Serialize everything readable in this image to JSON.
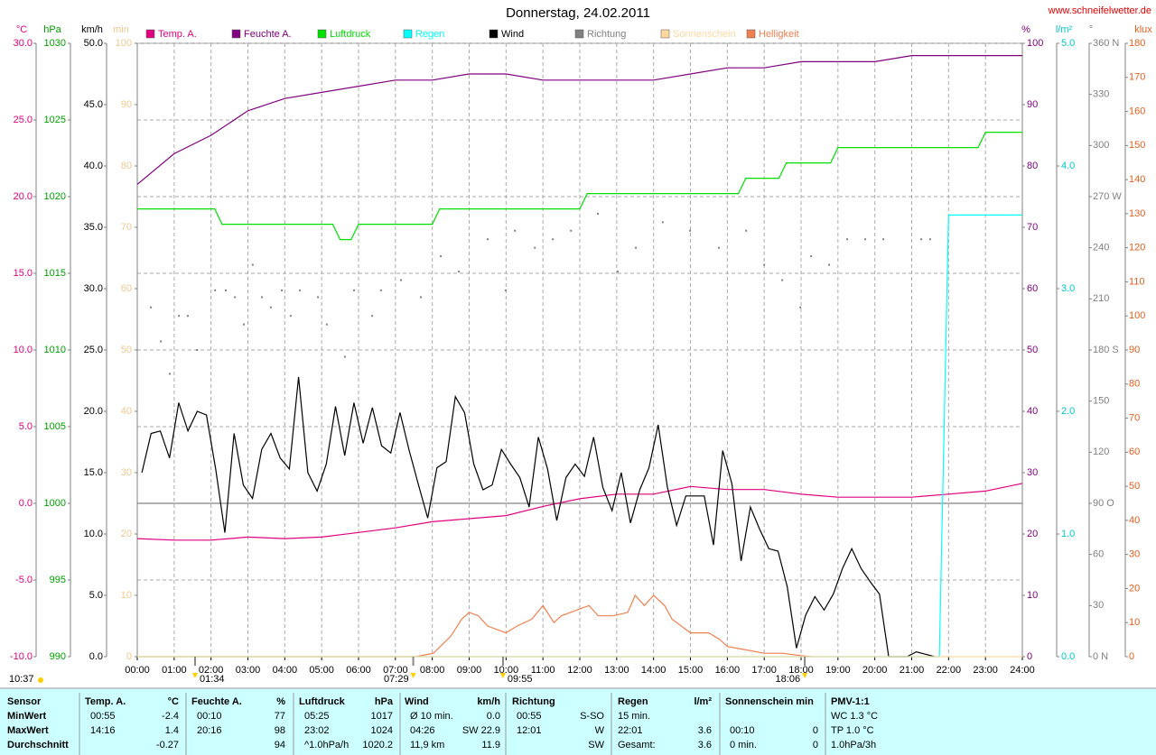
{
  "chart_data": {
    "type": "line",
    "title": "Donnerstag, 24.02.2011",
    "source": "www.schneifelwetter.de",
    "xlim": [
      0,
      24
    ],
    "xticks": [
      {
        "value": 0,
        "label": "00:00"
      },
      {
        "value": 1,
        "label": "01:00"
      },
      {
        "value": 2,
        "label": "02:00"
      },
      {
        "value": 3,
        "label": "03:00"
      },
      {
        "value": 4,
        "label": "04:00"
      },
      {
        "value": 5,
        "label": "05:00"
      },
      {
        "value": 6,
        "label": "06:00"
      },
      {
        "value": 7,
        "label": "07:00"
      },
      {
        "value": 8,
        "label": "08:00"
      },
      {
        "value": 9,
        "label": "09:00"
      },
      {
        "value": 10,
        "label": "10:00"
      },
      {
        "value": 11,
        "label": "11:00"
      },
      {
        "value": 12,
        "label": "12:00"
      },
      {
        "value": 13,
        "label": "13:00"
      },
      {
        "value": 14,
        "label": "14:00"
      },
      {
        "value": 15,
        "label": "15:00"
      },
      {
        "value": 16,
        "label": "16:00"
      },
      {
        "value": 17,
        "label": "17:00"
      },
      {
        "value": 18,
        "label": "18:00"
      },
      {
        "value": 19,
        "label": "19:00"
      },
      {
        "value": 20,
        "label": "20:00"
      },
      {
        "value": 21,
        "label": "21:00"
      },
      {
        "value": 22,
        "label": "22:00"
      },
      {
        "value": 23,
        "label": "23:00"
      },
      {
        "value": 24,
        "label": "24:00"
      }
    ],
    "grid": true,
    "ylabel": "°C",
    "ycolor": "#e0007f",
    "ylim": [
      -10,
      30
    ],
    "yticks": [
      {
        "value": -10,
        "label": "-10.0"
      },
      {
        "value": -5,
        "label": "-5.0"
      },
      {
        "value": 0,
        "label": "0.0"
      },
      {
        "value": 5,
        "label": "5.0"
      },
      {
        "value": 10,
        "label": "10.0"
      },
      {
        "value": 15,
        "label": "15.0"
      },
      {
        "value": 20,
        "label": "20.0"
      },
      {
        "value": 25,
        "label": "25.0"
      },
      {
        "value": 30,
        "label": "30.0"
      }
    ],
    "y2label": "hPa",
    "y2color": "#00a000",
    "y2lim": [
      990,
      1030
    ],
    "y2ticks": [
      990,
      995,
      1000,
      1005,
      1010,
      1015,
      1020,
      1025,
      1030
    ],
    "y3label": "km/h",
    "y3color": "#000000",
    "y3lim": [
      0,
      50
    ],
    "y3ticks": [
      {
        "value": 0,
        "label": "0.0"
      },
      {
        "value": 5,
        "label": "5.0"
      },
      {
        "value": 10,
        "label": "10.0"
      },
      {
        "value": 15,
        "label": "15.0"
      },
      {
        "value": 20,
        "label": "20.0"
      },
      {
        "value": 25,
        "label": "25.0"
      },
      {
        "value": 30,
        "label": "30.0"
      },
      {
        "value": 35,
        "label": "35.0"
      },
      {
        "value": 40,
        "label": "40.0"
      },
      {
        "value": 45,
        "label": "45.0"
      },
      {
        "value": 50,
        "label": "50.0"
      }
    ],
    "y4label": "min",
    "y4color": "#f0c890",
    "y4lim": [
      0,
      100
    ],
    "y4ticks": [
      0,
      10,
      20,
      30,
      40,
      50,
      60,
      70,
      80,
      90,
      100
    ],
    "y5label": "%",
    "y5color": "#800080",
    "y5lim": [
      0,
      100
    ],
    "y5ticks": [
      0,
      10,
      20,
      30,
      40,
      50,
      60,
      70,
      80,
      90,
      100
    ],
    "y6label": "l/m²",
    "y6color": "#00c8c8",
    "y6lim": [
      0,
      5
    ],
    "y6ticks": [
      {
        "value": 0,
        "label": "0.0"
      },
      {
        "value": 1,
        "label": "1.0"
      },
      {
        "value": 2,
        "label": "2.0"
      },
      {
        "value": 3,
        "label": "3.0"
      },
      {
        "value": 4,
        "label": "4.0"
      },
      {
        "value": 5,
        "label": "5.0"
      }
    ],
    "y7label": "°",
    "y7color": "#808080",
    "y7lim": [
      0,
      360
    ],
    "y7ticks": [
      {
        "value": 0,
        "label": "0 N"
      },
      30,
      60,
      {
        "value": 90,
        "label": "90 O"
      },
      120,
      150,
      {
        "value": 180,
        "label": "180 S"
      },
      210,
      240,
      {
        "value": 270,
        "label": "270 W"
      },
      300,
      330,
      {
        "value": 360,
        "label": "360 N"
      }
    ],
    "y8label": "klux",
    "y8color": "#e06020",
    "y8lim": [
      0,
      180
    ],
    "y8ticks": [
      0,
      10,
      20,
      30,
      40,
      50,
      60,
      70,
      80,
      90,
      100,
      110,
      120,
      130,
      140,
      150,
      160,
      170,
      180
    ],
    "series": [
      {
        "name": "Temp. A.",
        "color": "#e0007f",
        "axis": "y",
        "x": [
          0,
          1,
          2,
          3,
          4,
          5,
          6,
          7,
          8,
          9,
          10,
          11,
          12,
          13,
          14,
          15,
          16,
          17,
          18,
          19,
          20,
          21,
          22,
          23,
          24
        ],
        "values": [
          -2.3,
          -2.4,
          -2.4,
          -2.2,
          -2.3,
          -2.2,
          -1.9,
          -1.6,
          -1.2,
          -1.0,
          -0.8,
          -0.2,
          0.3,
          0.6,
          0.6,
          1.1,
          0.9,
          0.9,
          0.6,
          0.4,
          0.4,
          0.4,
          0.6,
          0.8,
          1.3
        ]
      },
      {
        "name": "Feuchte A.",
        "color": "#800080",
        "axis": "y5",
        "x": [
          0,
          1,
          2,
          3,
          4,
          5,
          6,
          7,
          8,
          9,
          10,
          11,
          12,
          13,
          14,
          15,
          16,
          17,
          18,
          19,
          20,
          21,
          22,
          23,
          24
        ],
        "values": [
          77,
          82,
          85,
          89,
          91,
          92,
          93,
          94,
          94,
          95,
          95,
          94,
          94,
          94,
          94,
          95,
          96,
          96,
          97,
          97,
          97,
          98,
          98,
          98,
          98
        ]
      },
      {
        "name": "Luftdruck",
        "color": "#00e000",
        "axis": "y2",
        "x": [
          0,
          2.1,
          2.3,
          5.3,
          5.5,
          5.8,
          6.0,
          8.0,
          8.2,
          12.0,
          12.2,
          16.3,
          16.5,
          17.4,
          17.6,
          18.8,
          19.0,
          22.8,
          23.0,
          24.0
        ],
        "values": [
          1019.2,
          1019.2,
          1018.2,
          1018.2,
          1017.2,
          1017.2,
          1018.2,
          1018.2,
          1019.2,
          1019.2,
          1020.2,
          1020.2,
          1021.2,
          1021.2,
          1022.2,
          1022.2,
          1023.2,
          1023.2,
          1024.2,
          1024.2
        ]
      },
      {
        "name": "Regen",
        "color": "#00ffff",
        "axis": "y6",
        "x": [
          0,
          21.75,
          22.0,
          24
        ],
        "values": [
          0,
          0,
          3.6,
          3.6
        ]
      },
      {
        "name": "Wind",
        "color": "#000000",
        "axis": "y3",
        "x": [
          0.125,
          0.375,
          0.625,
          0.875,
          1.125,
          1.375,
          1.625,
          1.875,
          2.125,
          2.375,
          2.625,
          2.875,
          3.125,
          3.375,
          3.625,
          3.875,
          4.125,
          4.375,
          4.625,
          4.875,
          5.125,
          5.375,
          5.625,
          5.875,
          6.125,
          6.375,
          6.625,
          6.875,
          7.125,
          7.375,
          7.625,
          7.875,
          8.125,
          8.375,
          8.625,
          8.875,
          9.125,
          9.375,
          9.625,
          9.875,
          10.125,
          10.375,
          10.625,
          10.875,
          11.125,
          11.375,
          11.625,
          11.875,
          12.125,
          12.375,
          12.625,
          12.875,
          13.125,
          13.375,
          13.625,
          13.875,
          14.125,
          14.375,
          14.625,
          14.875,
          15.125,
          15.375,
          15.625,
          15.875,
          16.125,
          16.375,
          16.625,
          16.875,
          17.125,
          17.375,
          17.625,
          17.875,
          18.125,
          18.375,
          18.625,
          18.875,
          19.125,
          19.375,
          19.625,
          19.875,
          20.125,
          20.375,
          20.625,
          20.875,
          21.125,
          21.375,
          21.625
        ],
        "values": [
          15.0,
          18.2,
          18.4,
          16.2,
          20.7,
          18.4,
          20.0,
          19.7,
          15.3,
          10.1,
          18.2,
          14.0,
          12.9,
          16.9,
          18.2,
          16.2,
          15.3,
          22.8,
          15.0,
          13.5,
          15.7,
          20.4,
          16.4,
          20.7,
          17.4,
          20.3,
          17.2,
          16.6,
          19.9,
          16.8,
          14.0,
          11.3,
          15.4,
          15.9,
          21.2,
          19.9,
          15.7,
          13.6,
          14.0,
          16.9,
          15.7,
          14.6,
          12.2,
          17.9,
          15.3,
          11.1,
          14.6,
          15.7,
          14.7,
          17.9,
          13.8,
          11.9,
          15.0,
          10.9,
          13.6,
          15.4,
          18.9,
          13.8,
          10.7,
          13.1,
          13.1,
          13.1,
          9.1,
          16.8,
          14.1,
          7.8,
          12.2,
          10.4,
          8.8,
          8.6,
          5.7,
          0.7,
          3.4,
          4.9,
          3.8,
          5.1,
          7.2,
          8.8,
          7.2,
          6.1,
          5.1,
          0,
          0,
          0,
          0.4,
          0.2,
          0
        ]
      },
      {
        "name": "Richtung",
        "color": "#808080",
        "axis": "y7",
        "type": "scatter",
        "x": [
          0.37,
          0.64,
          0.88,
          1.13,
          1.37,
          1.62,
          2.11,
          2.4,
          2.65,
          2.89,
          3.13,
          3.38,
          3.62,
          3.92,
          4.16,
          4.41,
          4.9,
          5.14,
          5.63,
          5.88,
          6.37,
          6.61,
          7.15,
          7.69,
          8.23,
          8.72,
          9.5,
          9.99,
          10.24,
          10.78,
          11.27,
          11.76,
          12.49,
          13.03,
          13.52,
          14.25,
          14.99,
          15.77,
          16.51,
          17.0,
          17.49,
          17.98,
          18.27,
          18.76,
          19.25,
          19.74,
          20.23,
          21.26,
          21.5
        ],
        "values": [
          205,
          185,
          166,
          200,
          200,
          180,
          215,
          215,
          211,
          195,
          230,
          211,
          205,
          215,
          200,
          215,
          211,
          195,
          176,
          215,
          200,
          215,
          221,
          211,
          235,
          226,
          245,
          215,
          250,
          240,
          245,
          250,
          260,
          226,
          240,
          255,
          250,
          240,
          250,
          230,
          221,
          205,
          235,
          230,
          245,
          245,
          245,
          245,
          245
        ]
      },
      {
        "name": "Sonnenschein",
        "color": "#ffd8a0",
        "axis": "y4",
        "x": [
          0,
          24
        ],
        "values": [
          0,
          0
        ]
      },
      {
        "name": "Helligkeit",
        "color": "#f08050",
        "axis": "y8",
        "x": [
          0,
          7.55,
          8.03,
          8.5,
          8.8,
          9.0,
          9.25,
          9.5,
          10.0,
          10.3,
          10.7,
          11.0,
          11.3,
          11.5,
          12.0,
          12.25,
          12.5,
          12.9,
          13.3,
          13.5,
          13.75,
          14.0,
          14.3,
          14.5,
          15.0,
          15.5,
          15.8,
          16.0,
          16.5,
          17.0,
          17.5,
          18.0,
          18.3
        ],
        "values": [
          0,
          0,
          1,
          6,
          11,
          13,
          12,
          9,
          7,
          9,
          11,
          15,
          10,
          12,
          14,
          15,
          12,
          12,
          13,
          18,
          15,
          18,
          15,
          11,
          7,
          7,
          5,
          3,
          2,
          1,
          1,
          0.3,
          0
        ]
      }
    ],
    "annotations": [
      {
        "label": "10:37"
      },
      {
        "x": 1.5667,
        "label": "01:34"
      },
      {
        "x": 7.4833,
        "label": "07:29"
      },
      {
        "x": 9.9167,
        "label": "09:55"
      },
      {
        "x": 18.1,
        "label": "18:06"
      }
    ]
  },
  "table": {
    "header": [
      "Sensor",
      "Temp. A.",
      "°C",
      "Feuchte A.",
      "%",
      "Luftdruck",
      "hPa",
      "Wind",
      "km/h",
      "Richtung",
      "Regen",
      "l/m²",
      "Sonnenschein min",
      "PMV-1:1"
    ],
    "rows": [
      [
        "MinWert",
        "00:55",
        "-2.4",
        "00:10",
        "77",
        "05:25",
        "1017",
        "Ø 10 min.",
        "0.0",
        "00:55",
        "S-SO",
        "15 min.",
        null,
        null,
        null,
        "WC 1.3 °C"
      ],
      [
        "MaxWert",
        "14:16",
        "1.4",
        "20:16",
        "98",
        "23:02",
        "1024",
        "04:26",
        "SW 22.9",
        "12:01",
        "W",
        "22:01",
        "3.6",
        "00:10",
        "0",
        "TP 1.0 °C"
      ],
      [
        "Durchschnitt",
        null,
        "-0.27",
        null,
        "94",
        "^1.0hPa/h",
        "1020.2",
        "11,9 km",
        "11.9",
        null,
        "SW",
        "Gesamt:",
        "3.6",
        "0 min.",
        "0",
        "1.0hPa/3h"
      ]
    ]
  }
}
